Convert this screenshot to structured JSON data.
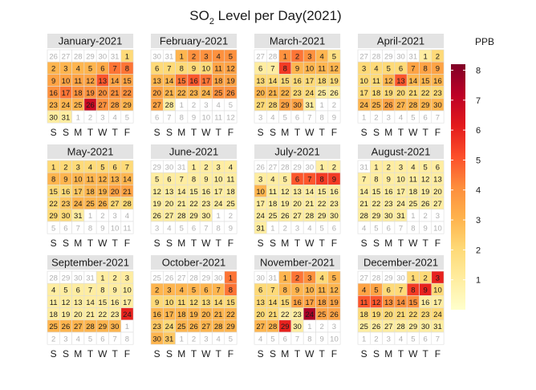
{
  "chart_data": {
    "type": "heatmap",
    "title_main": "SO",
    "title_sub": "2",
    "title_rest": " Level per Day(2021)",
    "legend_title": "PPB",
    "legend_ticks": [
      "1",
      "2",
      "3",
      "4",
      "5",
      "6",
      "7",
      "8"
    ],
    "value_range": [
      0,
      8.2
    ],
    "weekday_labels": [
      "S",
      "S",
      "M",
      "T",
      "W",
      "T",
      "F"
    ],
    "colors": {
      "low": "#FFFFCC",
      "stops": [
        "#FFFFCC",
        "#FFEDA0",
        "#FED976",
        "#FEB24C",
        "#FD8D3C",
        "#FC4E2A",
        "#E31A1C",
        "#BD0026",
        "#800026"
      ],
      "panel_header": "#E3E3E3",
      "grid": "#DDDDDD",
      "other_month_text": "#B0B0B0"
    },
    "months": [
      {
        "name": "January-2021",
        "start_col": 6,
        "days": 31,
        "values": [
          2.0,
          3.0,
          3.0,
          3.0,
          3.0,
          3.3,
          4.5,
          4.5,
          3.5,
          3.5,
          3.5,
          3.5,
          5.0,
          3.5,
          3.5,
          4.0,
          4.5,
          4.0,
          4.0,
          4.0,
          4.0,
          4.0,
          3.0,
          3.0,
          3.0,
          6.8,
          4.0,
          3.5,
          3.0,
          1.0,
          1.0
        ]
      },
      {
        "name": "February-2021",
        "start_col": 2,
        "days": 28,
        "values": [
          3.0,
          4.0,
          4.0,
          4.0,
          4.0,
          2.0,
          2.0,
          2.0,
          2.0,
          2.0,
          3.5,
          3.5,
          3.0,
          3.0,
          4.5,
          5.0,
          4.5,
          3.5,
          3.5,
          3.5,
          3.0,
          3.0,
          3.0,
          3.0,
          4.0,
          4.0,
          3.5,
          1.0
        ]
      },
      {
        "name": "March-2021",
        "start_col": 2,
        "days": 31,
        "values": [
          4.0,
          4.5,
          4.0,
          3.0,
          1.7,
          1.0,
          1.0,
          5.5,
          3.0,
          3.0,
          3.0,
          3.0,
          2.0,
          2.0,
          2.0,
          2.0,
          2.0,
          2.0,
          2.0,
          3.0,
          3.0,
          3.0,
          2.0,
          2.0,
          1.0,
          1.0,
          2.0,
          2.0,
          3.5,
          3.5,
          1.0
        ]
      },
      {
        "name": "April-2021",
        "start_col": 5,
        "days": 30,
        "values": [
          1.0,
          2.0,
          2.0,
          2.0,
          2.0,
          2.0,
          3.5,
          3.5,
          3.5,
          2.0,
          2.0,
          3.0,
          5.0,
          3.0,
          3.0,
          3.0,
          2.0,
          2.0,
          2.0,
          2.0,
          2.0,
          2.0,
          2.0,
          3.0,
          3.0,
          3.5,
          3.0,
          3.0,
          3.0,
          3.0
        ]
      },
      {
        "name": "May-2021",
        "start_col": 0,
        "days": 31,
        "values": [
          2.0,
          2.0,
          2.0,
          2.0,
          2.0,
          2.0,
          2.0,
          3.0,
          3.0,
          3.0,
          3.0,
          3.0,
          3.0,
          3.0,
          2.0,
          2.0,
          2.5,
          3.0,
          3.0,
          3.5,
          3.5,
          2.0,
          2.5,
          3.0,
          3.0,
          3.0,
          2.0,
          2.0,
          2.0,
          2.0,
          1.0
        ]
      },
      {
        "name": "June-2021",
        "start_col": 3,
        "days": 30,
        "values": [
          1.0,
          1.0,
          1.0,
          1.0,
          1.0,
          1.0,
          1.0,
          1.0,
          1.0,
          1.0,
          1.0,
          1.0,
          1.0,
          1.0,
          1.0,
          1.0,
          1.0,
          1.0,
          1.0,
          1.0,
          1.0,
          1.0,
          1.0,
          1.0,
          1.0,
          1.0,
          1.0,
          1.0,
          1.0,
          1.0
        ]
      },
      {
        "name": "July-2021",
        "start_col": 5,
        "days": 31,
        "values": [
          1.0,
          1.0,
          1.0,
          1.0,
          1.0,
          5.0,
          5.0,
          5.5,
          5.5,
          3.0,
          1.0,
          1.0,
          1.0,
          1.0,
          1.0,
          1.0,
          1.0,
          1.0,
          1.0,
          1.0,
          1.0,
          1.0,
          1.0,
          1.0,
          1.0,
          1.0,
          1.0,
          1.0,
          1.0,
          1.0,
          1.0
        ]
      },
      {
        "name": "August-2021",
        "start_col": 1,
        "days": 31,
        "values": [
          1.0,
          1.0,
          1.0,
          1.0,
          1.0,
          1.0,
          1.0,
          1.0,
          1.0,
          1.0,
          1.0,
          1.0,
          1.0,
          1.0,
          1.0,
          1.0,
          1.0,
          1.0,
          1.0,
          1.0,
          1.0,
          1.0,
          1.0,
          1.0,
          1.0,
          1.0,
          1.0,
          1.0,
          1.0,
          1.0,
          1.0
        ]
      },
      {
        "name": "September-2021",
        "start_col": 4,
        "days": 30,
        "values": [
          1.0,
          1.0,
          1.0,
          1.0,
          1.0,
          1.0,
          1.0,
          1.0,
          1.0,
          1.0,
          1.0,
          1.0,
          1.0,
          1.0,
          1.0,
          1.0,
          1.0,
          1.0,
          1.0,
          1.0,
          1.0,
          1.0,
          1.0,
          6.0,
          3.0,
          3.0,
          3.0,
          3.0,
          3.0,
          3.0
        ]
      },
      {
        "name": "October-2021",
        "start_col": 6,
        "days": 31,
        "values": [
          4.5,
          3.0,
          3.0,
          3.0,
          3.0,
          3.0,
          3.0,
          4.5,
          2.0,
          2.0,
          2.0,
          2.0,
          2.0,
          2.0,
          2.0,
          3.0,
          3.0,
          3.0,
          3.0,
          3.0,
          3.0,
          3.0,
          2.5,
          2.0,
          3.0,
          3.0,
          3.0,
          3.0,
          3.0,
          3.0,
          2.5
        ]
      },
      {
        "name": "November-2021",
        "start_col": 2,
        "days": 30,
        "values": [
          3.0,
          4.5,
          4.0,
          2.0,
          3.0,
          2.0,
          2.0,
          3.0,
          3.0,
          3.0,
          3.0,
          3.0,
          2.0,
          2.0,
          2.0,
          3.5,
          3.5,
          3.5,
          3.5,
          2.0,
          2.0,
          1.0,
          1.0,
          7.5,
          3.5,
          3.5,
          3.0,
          3.0,
          6.0,
          1.0
        ]
      },
      {
        "name": "December-2021",
        "start_col": 4,
        "days": 31,
        "values": [
          2.0,
          2.0,
          6.0,
          3.5,
          3.5,
          2.0,
          2.0,
          5.5,
          6.0,
          2.0,
          5.0,
          5.0,
          4.0,
          4.0,
          4.0,
          1.0,
          1.0,
          2.0,
          2.0,
          2.0,
          2.0,
          2.0,
          2.0,
          2.0,
          1.0,
          1.0,
          1.0,
          1.0,
          1.0,
          1.0,
          1.0
        ]
      }
    ]
  }
}
